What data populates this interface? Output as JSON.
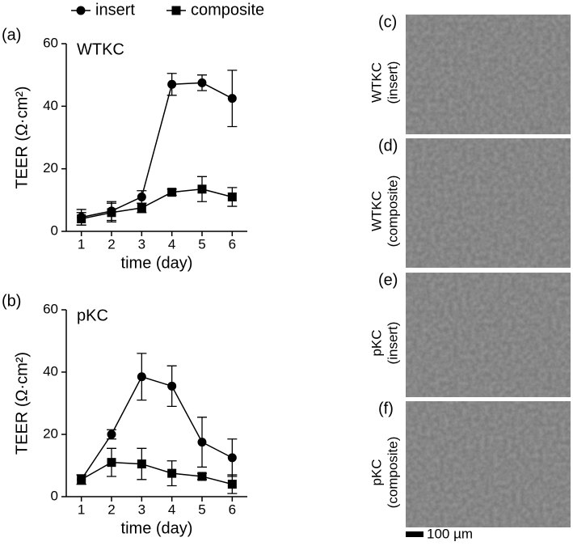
{
  "chart_data": [
    {
      "type": "line",
      "label": "(a)",
      "title": "WTKC",
      "xlabel": "time (day)",
      "ylabel": "TEER (Ω·cm²)",
      "x": [
        1,
        2,
        3,
        4,
        5,
        6
      ],
      "xlim": [
        0.5,
        6.5
      ],
      "xticks": [
        1,
        2,
        3,
        4,
        5,
        6
      ],
      "ylim": [
        0,
        60
      ],
      "yticks": [
        0,
        20,
        40,
        60
      ],
      "series": [
        {
          "name": "insert",
          "marker": "circle",
          "color": "#000000",
          "values": [
            4.5,
            6.5,
            11,
            47,
            47.5,
            42.5
          ],
          "errors": [
            2.5,
            3,
            2,
            3.5,
            2.5,
            9
          ]
        },
        {
          "name": "composite",
          "marker": "square",
          "color": "#000000",
          "values": [
            4,
            6,
            7.5,
            12.5,
            13.5,
            11
          ],
          "errors": [
            2,
            3,
            1.5,
            1,
            4,
            3
          ]
        }
      ]
    },
    {
      "type": "line",
      "label": "(b)",
      "title": "pKC",
      "xlabel": "time (day)",
      "ylabel": "TEER (Ω·cm²)",
      "x": [
        1,
        2,
        3,
        4,
        5,
        6
      ],
      "xlim": [
        0.5,
        6.5
      ],
      "xticks": [
        1,
        2,
        3,
        4,
        5,
        6
      ],
      "ylim": [
        0,
        60
      ],
      "yticks": [
        0,
        20,
        40,
        60
      ],
      "series": [
        {
          "marker": "circle",
          "color": "#000000",
          "values": [
            5.5,
            20,
            38.5,
            35.5,
            17.5,
            12.5
          ],
          "errors": [
            1.5,
            1.5,
            7.5,
            6.5,
            8,
            6
          ]
        },
        {
          "marker": "square",
          "color": "#000000",
          "values": [
            5.5,
            11,
            10.5,
            7.5,
            6.5,
            4
          ],
          "errors": [
            1.5,
            4.5,
            5,
            4,
            1,
            3
          ]
        }
      ]
    }
  ],
  "micrographs": [
    {
      "label": "(c)",
      "lines": [
        "WTKC",
        "(insert)"
      ]
    },
    {
      "label": "(d)",
      "lines": [
        "WTKC",
        "(composite)"
      ]
    },
    {
      "label": "(e)",
      "lines": [
        "pKC",
        "(insert)"
      ]
    },
    {
      "label": "(f)",
      "lines": [
        "pKC",
        "(composite)"
      ]
    }
  ],
  "scale_bar": "100 µm"
}
